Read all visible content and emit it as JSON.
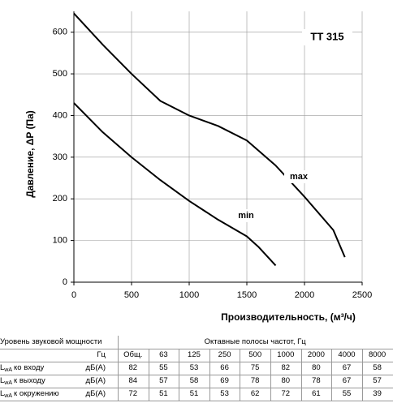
{
  "chart_data": {
    "type": "line",
    "ylabel": "Давление, ΔP (Па)",
    "xlabel": "Производительность, (м³/ч)",
    "model": "TT 315",
    "series": [
      {
        "name": "max",
        "color": "#000000",
        "x": [
          0,
          250,
          500,
          750,
          1000,
          1250,
          1500,
          1750,
          2000,
          2250,
          2350
        ],
        "values": [
          645,
          570,
          500,
          435,
          400,
          375,
          340,
          280,
          205,
          125,
          60
        ]
      },
      {
        "name": "min",
        "color": "#000000",
        "x": [
          0,
          250,
          500,
          750,
          1000,
          1250,
          1500,
          1600,
          1750
        ],
        "values": [
          430,
          360,
          300,
          245,
          195,
          150,
          110,
          85,
          40
        ]
      }
    ],
    "xlim": [
      0,
      2500
    ],
    "xticks": [
      0,
      500,
      1000,
      1500,
      2000,
      2500
    ],
    "ylim": [
      0,
      650
    ],
    "yticks": [
      0,
      100,
      200,
      300,
      400,
      500,
      600
    ],
    "grid": true
  },
  "table": {
    "header": [
      "Уровень звуковой мощности",
      "Октавные полосы частот, Гц"
    ],
    "unit": "Гц",
    "columns": [
      "Общ.",
      63,
      125,
      250,
      500,
      1000,
      2000,
      4000,
      8000
    ],
    "rows": [
      {
        "symbol": "L",
        "sub": "wA",
        "text": "ко входу",
        "unit": "дБ(A)",
        "values": [
          82,
          55,
          53,
          66,
          75,
          82,
          80,
          67,
          58
        ]
      },
      {
        "symbol": "L",
        "sub": "wA",
        "text": "к выходу",
        "unit": "дБ(A)",
        "values": [
          84,
          57,
          58,
          69,
          78,
          80,
          78,
          67,
          57
        ]
      },
      {
        "symbol": "L",
        "sub": "wA",
        "text": "к окружению",
        "unit": "дБ(A)",
        "values": [
          72,
          51,
          51,
          53,
          62,
          72,
          61,
          55,
          39
        ]
      }
    ]
  }
}
